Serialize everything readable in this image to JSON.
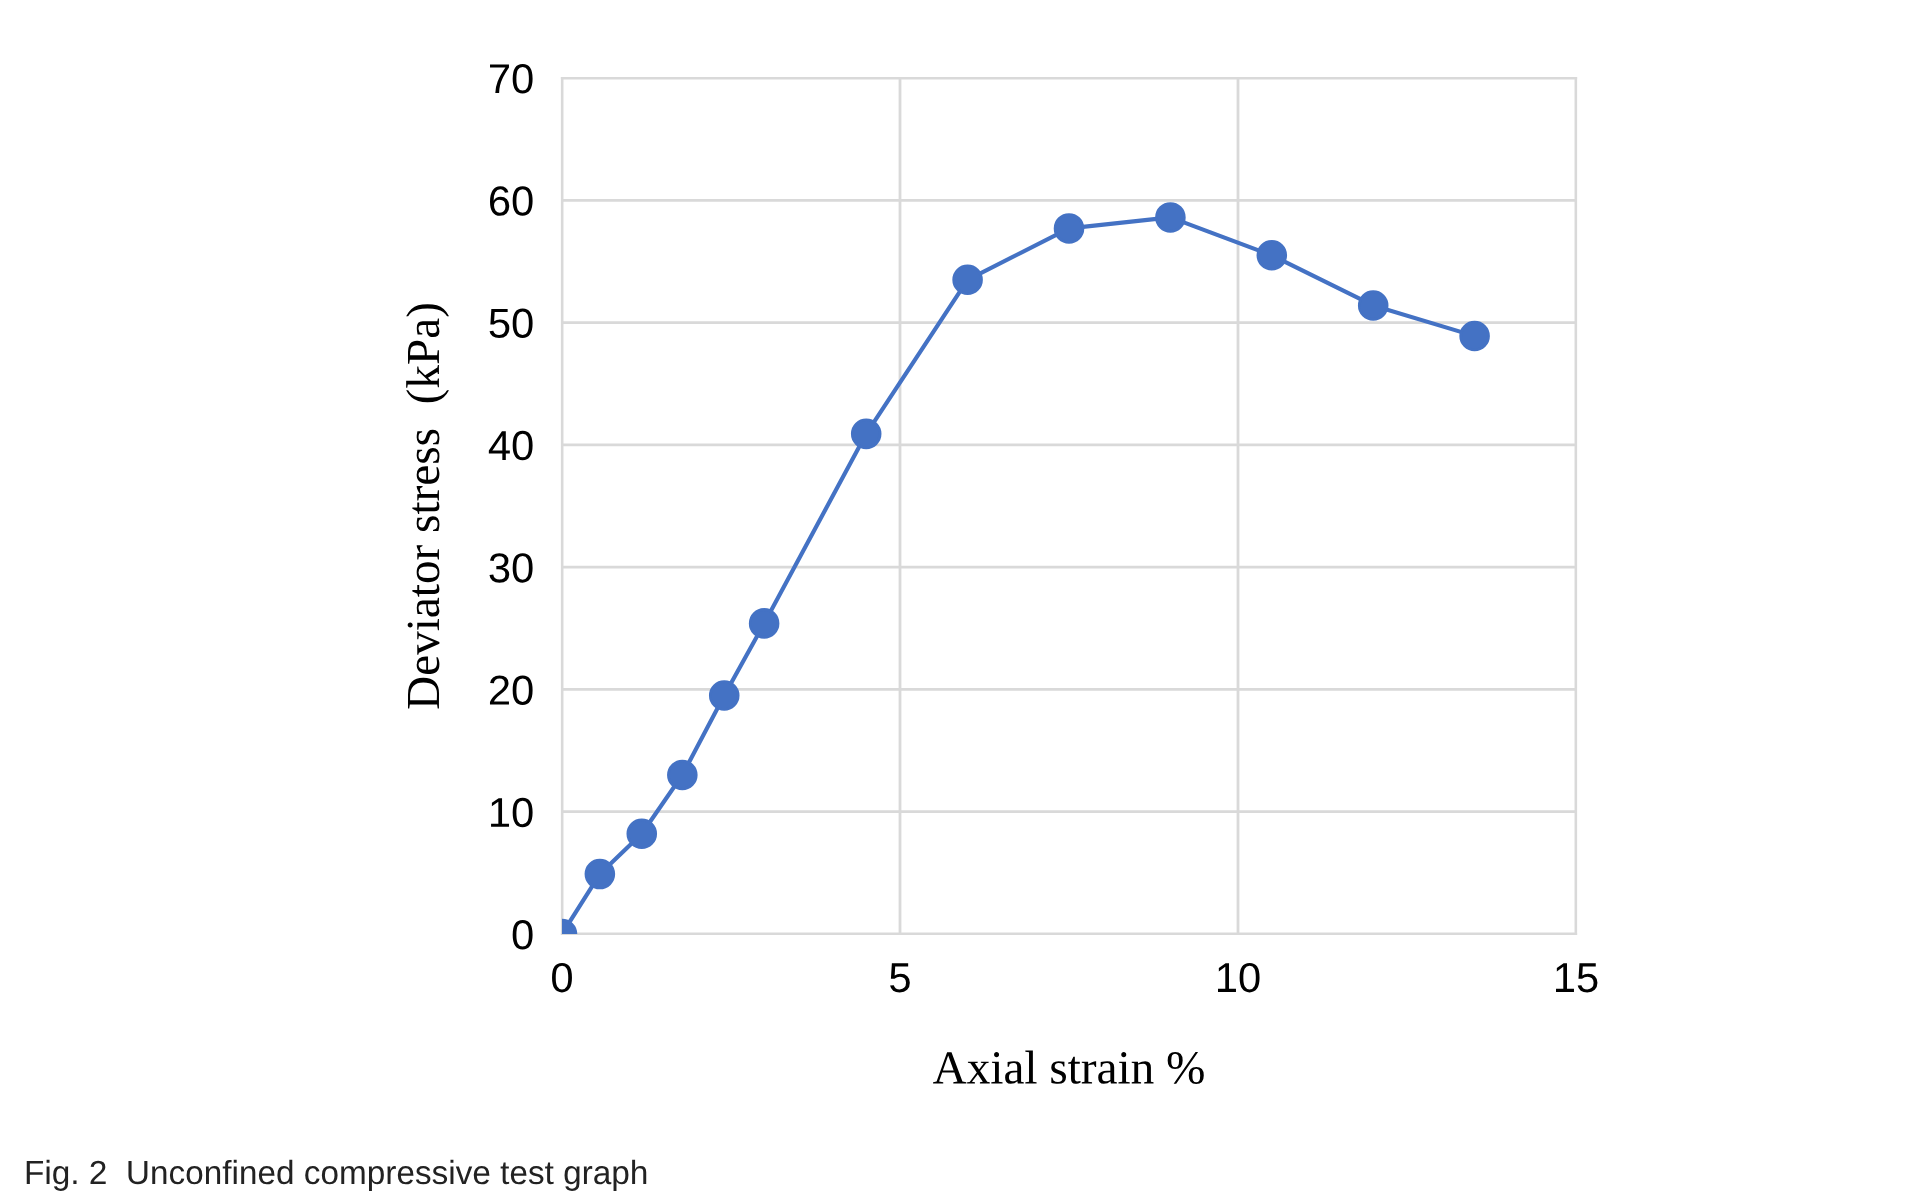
{
  "chart_data": {
    "type": "line",
    "xlabel": "Axial strain %",
    "ylabel": "Deviator stress  (kPa)",
    "x": [
      0,
      0.56,
      1.18,
      1.78,
      2.4,
      2.99,
      4.5,
      6.0,
      7.5,
      9.0,
      10.5,
      12.0,
      13.5
    ],
    "series": [
      {
        "color": "#4472c4",
        "values": [
          0,
          4.9,
          8.2,
          13,
          19.5,
          25.4,
          40.9,
          53.5,
          57.7,
          58.6,
          55.5,
          51.4,
          48.9
        ]
      }
    ],
    "xlim": [
      0,
      15
    ],
    "xticks": [
      0,
      5,
      10,
      15
    ],
    "ylim": [
      0,
      70
    ],
    "yticks": [
      0,
      10,
      20,
      30,
      40,
      50,
      60,
      70
    ],
    "grid": true,
    "marker": "circle",
    "line_style": "solid",
    "annotations": [
      "Fig. 2  Unconfined compressive test graph"
    ]
  }
}
